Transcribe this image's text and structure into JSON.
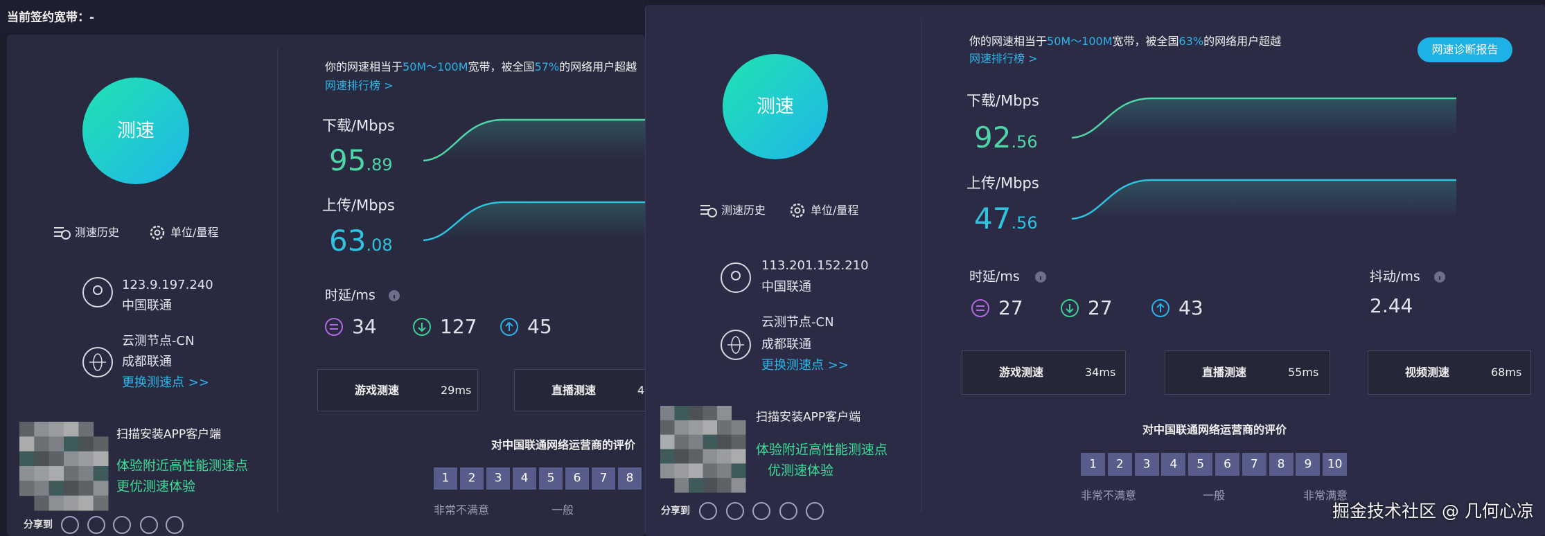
{
  "top_bar": {
    "contract": "当前签约宽带：-"
  },
  "panels": [
    {
      "start_button": "测速",
      "summary": {
        "prefix": "你的网速相当于",
        "range": "50M～100M",
        "middle": "宽带，被全国",
        "percent": "57%",
        "suffix": "的网络用户超越"
      },
      "ranking_link": "网速排行榜 >",
      "tools": [
        "测速历史",
        "单位/量程"
      ],
      "download": {
        "label": "下载/Mbps",
        "integer": "95",
        "decimal": ".89"
      },
      "upload": {
        "label": "上传/Mbps",
        "integer": "63",
        "decimal": ".08"
      },
      "ip": "123.9.197.240",
      "isp": "中国联通",
      "node": "云测节点-CN",
      "node_isp": "成都联通",
      "change_node": "更换测速点 >>",
      "latency": {
        "label": "时延/ms",
        "values": [
          34,
          127,
          45
        ]
      },
      "tests": [
        {
          "name": "游戏测速",
          "value": "29ms"
        },
        {
          "name": "直播测速",
          "value": "4"
        }
      ],
      "app": {
        "title": "扫描安装APP客户端",
        "line1": "体验附近高性能测速点",
        "line2": "更优测速体验"
      },
      "rating": {
        "title": "对中国联通网络运营商的评价",
        "scores": [
          1,
          2,
          3,
          4,
          5,
          6,
          7,
          8
        ],
        "labels": [
          "非常不满意",
          "一般"
        ]
      },
      "share": "分享到"
    },
    {
      "start_button": "测速",
      "summary": {
        "prefix": "你的网速相当于",
        "range": "50M～100M",
        "middle": "宽带，被全国",
        "percent": "63%",
        "suffix": "的网络用户超越"
      },
      "ranking_link": "网速排行榜 >",
      "diagnosis_button": "网速诊断报告",
      "tools": [
        "测速历史",
        "单位/量程"
      ],
      "download": {
        "label": "下载/Mbps",
        "integer": "92",
        "decimal": ".56"
      },
      "upload": {
        "label": "上传/Mbps",
        "integer": "47",
        "decimal": ".56"
      },
      "ip": "113.201.152.210",
      "isp": "中国联通",
      "node": "云测节点-CN",
      "node_isp": "成都联通",
      "change_node": "更换测速点 >>",
      "latency": {
        "label": "时延/ms",
        "values": [
          27,
          27,
          43
        ]
      },
      "jitter": {
        "label": "抖动/ms",
        "value": 2.44
      },
      "tests": [
        {
          "name": "游戏测速",
          "value": "34ms"
        },
        {
          "name": "直播测速",
          "value": "55ms"
        },
        {
          "name": "视频测速",
          "value": "68ms"
        }
      ],
      "app": {
        "title": "扫描安装APP客户端",
        "line1": "体验附近高性能测速点",
        "line2": "优测速体验"
      },
      "rating": {
        "title": "对中国联通网络运营商的评价",
        "scores": [
          1,
          2,
          3,
          4,
          5,
          6,
          7,
          8,
          9,
          10
        ],
        "labels": [
          "非常不满意",
          "一般",
          "非常满意"
        ]
      },
      "share": "分享到"
    }
  ],
  "watermark": "掘金技术社区 @ 几何心凉"
}
